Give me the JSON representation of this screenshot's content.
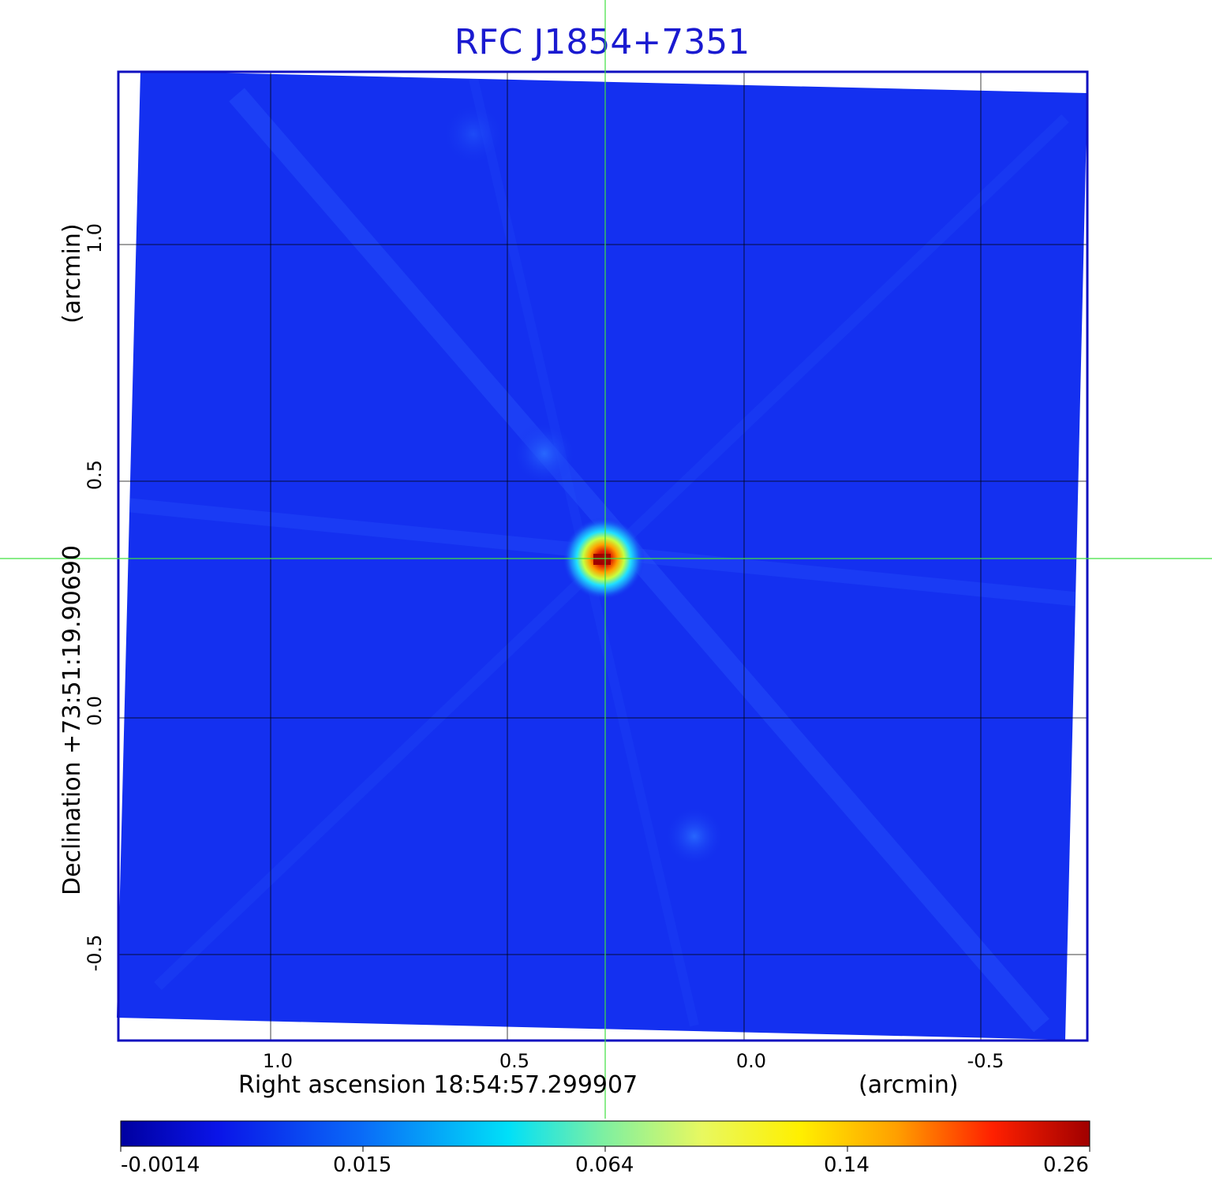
{
  "title": "RFC J1854+7351",
  "x_axis": {
    "label": "Right ascension  18:54:57.299907",
    "unit": "(arcmin)",
    "ticks": [
      "1.0",
      "0.5",
      "0.0",
      "-0.5"
    ]
  },
  "y_axis": {
    "label": "Declination  +73:51:19.90690",
    "unit": "(arcmin)",
    "ticks": [
      "1.0",
      "0.5",
      "0.0",
      "-0.5"
    ]
  },
  "colorbar": {
    "ticks": [
      "-0.0014",
      "0.015",
      "0.064",
      "0.14",
      "0.26"
    ],
    "colormap": "jet"
  },
  "colors": {
    "title": "#1a1ad0",
    "frame": "#1010c0",
    "background_field": "#1430f0",
    "crosshair": "#40e040",
    "grid": "#000000"
  },
  "image": {
    "description_of_source": "bright compact source near image center"
  }
}
